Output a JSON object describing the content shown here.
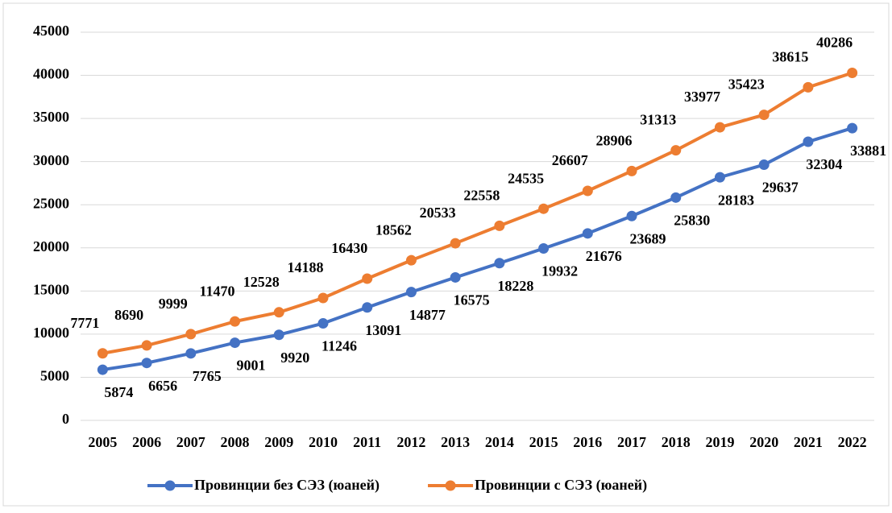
{
  "chart_data": {
    "type": "line",
    "categories": [
      "2005",
      "2006",
      "2007",
      "2008",
      "2009",
      "2010",
      "2011",
      "2012",
      "2013",
      "2014",
      "2015",
      "2016",
      "2017",
      "2018",
      "2019",
      "2020",
      "2021",
      "2022"
    ],
    "series": [
      {
        "name": "Провинции без СЭЗ (юаней)",
        "color": "#4472c4",
        "values": [
          5874,
          6656,
          7765,
          9001,
          9920,
          11246,
          13091,
          14877,
          16575,
          18228,
          19932,
          21676,
          23689,
          25830,
          28183,
          29637,
          32304,
          33881
        ]
      },
      {
        "name": "Провинции с СЭЗ (юаней)",
        "color": "#ed7d31",
        "values": [
          7771,
          8690,
          9999,
          11470,
          12528,
          14188,
          16430,
          18562,
          20533,
          22558,
          24535,
          26607,
          28906,
          31313,
          33977,
          35423,
          38615,
          40286
        ]
      }
    ],
    "ylim": [
      0,
      45000
    ],
    "yticks": [
      0,
      5000,
      10000,
      15000,
      20000,
      25000,
      30000,
      35000,
      40000,
      45000
    ],
    "grid": true,
    "legend": "bottom"
  }
}
